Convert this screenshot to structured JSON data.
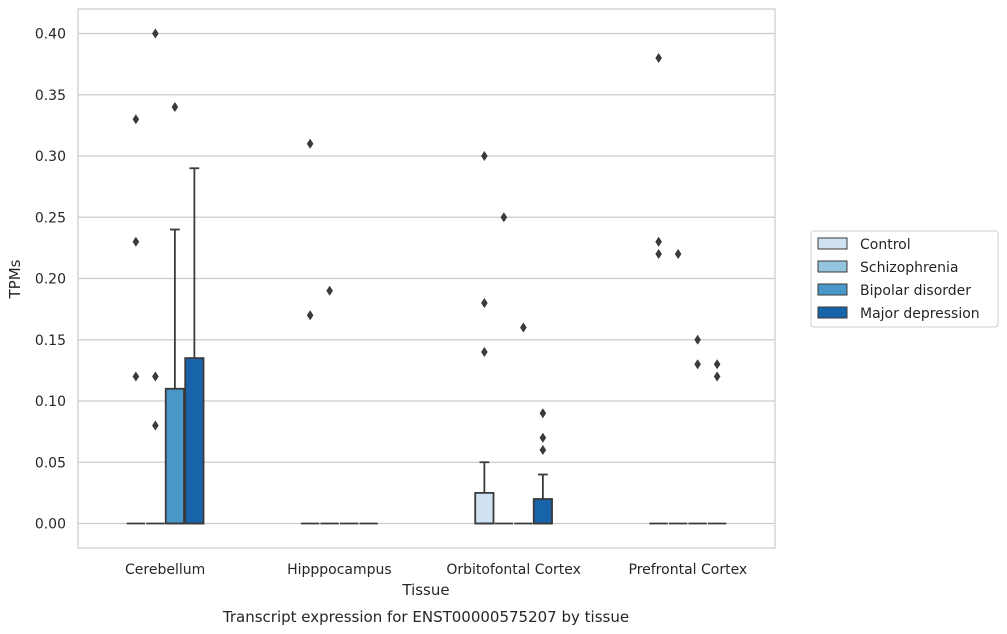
{
  "chart_data": {
    "type": "box",
    "xlabel": "Tissue",
    "ylabel": "TPMs",
    "caption": "Transcript expression for ENST00000575207 by tissue",
    "ylim": [
      -0.02,
      0.42
    ],
    "yticks": [
      "0.00",
      "0.05",
      "0.10",
      "0.15",
      "0.20",
      "0.25",
      "0.30",
      "0.35",
      "0.40"
    ],
    "ytick_values": [
      0,
      0.05,
      0.1,
      0.15,
      0.2,
      0.25,
      0.3,
      0.35,
      0.4
    ],
    "grid": true,
    "legend_position": "right",
    "categories": [
      "Cerebellum",
      "Hipppocampus",
      "Orbitofontal Cortex",
      "Prefrontal Cortex"
    ],
    "series": [
      {
        "name": "Control",
        "color": "#d0e1f2",
        "boxes": [
          {
            "q1": 0,
            "median": 0,
            "q3": 0,
            "whisker_low": 0,
            "whisker_high": 0,
            "outliers": [
              0.33,
              0.23,
              0.12
            ]
          },
          {
            "q1": 0,
            "median": 0,
            "q3": 0,
            "whisker_low": 0,
            "whisker_high": 0,
            "outliers": [
              0.31,
              0.17
            ]
          },
          {
            "q1": 0,
            "median": 0,
            "q3": 0.025,
            "whisker_low": 0,
            "whisker_high": 0.05,
            "outliers": [
              0.3,
              0.18,
              0.14
            ]
          },
          {
            "q1": 0,
            "median": 0,
            "q3": 0,
            "whisker_low": 0,
            "whisker_high": 0,
            "outliers": [
              0.38,
              0.23,
              0.22
            ]
          }
        ]
      },
      {
        "name": "Schizophrenia",
        "color": "#94c4df",
        "boxes": [
          {
            "q1": 0,
            "median": 0,
            "q3": 0,
            "whisker_low": 0,
            "whisker_high": 0,
            "outliers": [
              0.4,
              0.12,
              0.08
            ]
          },
          {
            "q1": 0,
            "median": 0,
            "q3": 0,
            "whisker_low": 0,
            "whisker_high": 0,
            "outliers": [
              0.19
            ]
          },
          {
            "q1": 0,
            "median": 0,
            "q3": 0,
            "whisker_low": 0,
            "whisker_high": 0,
            "outliers": [
              0.25
            ]
          },
          {
            "q1": 0,
            "median": 0,
            "q3": 0,
            "whisker_low": 0,
            "whisker_high": 0,
            "outliers": [
              0.22
            ]
          }
        ]
      },
      {
        "name": "Bipolar disorder",
        "color": "#4a98c9",
        "boxes": [
          {
            "q1": 0,
            "median": 0,
            "q3": 0.11,
            "whisker_low": 0,
            "whisker_high": 0.24,
            "outliers": [
              0.34
            ]
          },
          {
            "q1": 0,
            "median": 0,
            "q3": 0,
            "whisker_low": 0,
            "whisker_high": 0,
            "outliers": []
          },
          {
            "q1": 0,
            "median": 0,
            "q3": 0,
            "whisker_low": 0,
            "whisker_high": 0,
            "outliers": [
              0.16
            ]
          },
          {
            "q1": 0,
            "median": 0,
            "q3": 0,
            "whisker_low": 0,
            "whisker_high": 0,
            "outliers": [
              0.15,
              0.13
            ]
          }
        ]
      },
      {
        "name": "Major depression",
        "color": "#1764ab",
        "boxes": [
          {
            "q1": 0,
            "median": 0,
            "q3": 0.135,
            "whisker_low": 0,
            "whisker_high": 0.29,
            "outliers": []
          },
          {
            "q1": 0,
            "median": 0,
            "q3": 0,
            "whisker_low": 0,
            "whisker_high": 0,
            "outliers": []
          },
          {
            "q1": 0,
            "median": 0,
            "q3": 0.02,
            "whisker_low": 0,
            "whisker_high": 0.04,
            "outliers": [
              0.09,
              0.07,
              0.06
            ]
          },
          {
            "q1": 0,
            "median": 0,
            "q3": 0,
            "whisker_low": 0,
            "whisker_high": 0,
            "outliers": [
              0.13,
              0.12
            ]
          }
        ]
      }
    ],
    "colors": {
      "line": "#3a3a3a",
      "grid": "#cccccc",
      "frame": "#cccccc"
    }
  }
}
